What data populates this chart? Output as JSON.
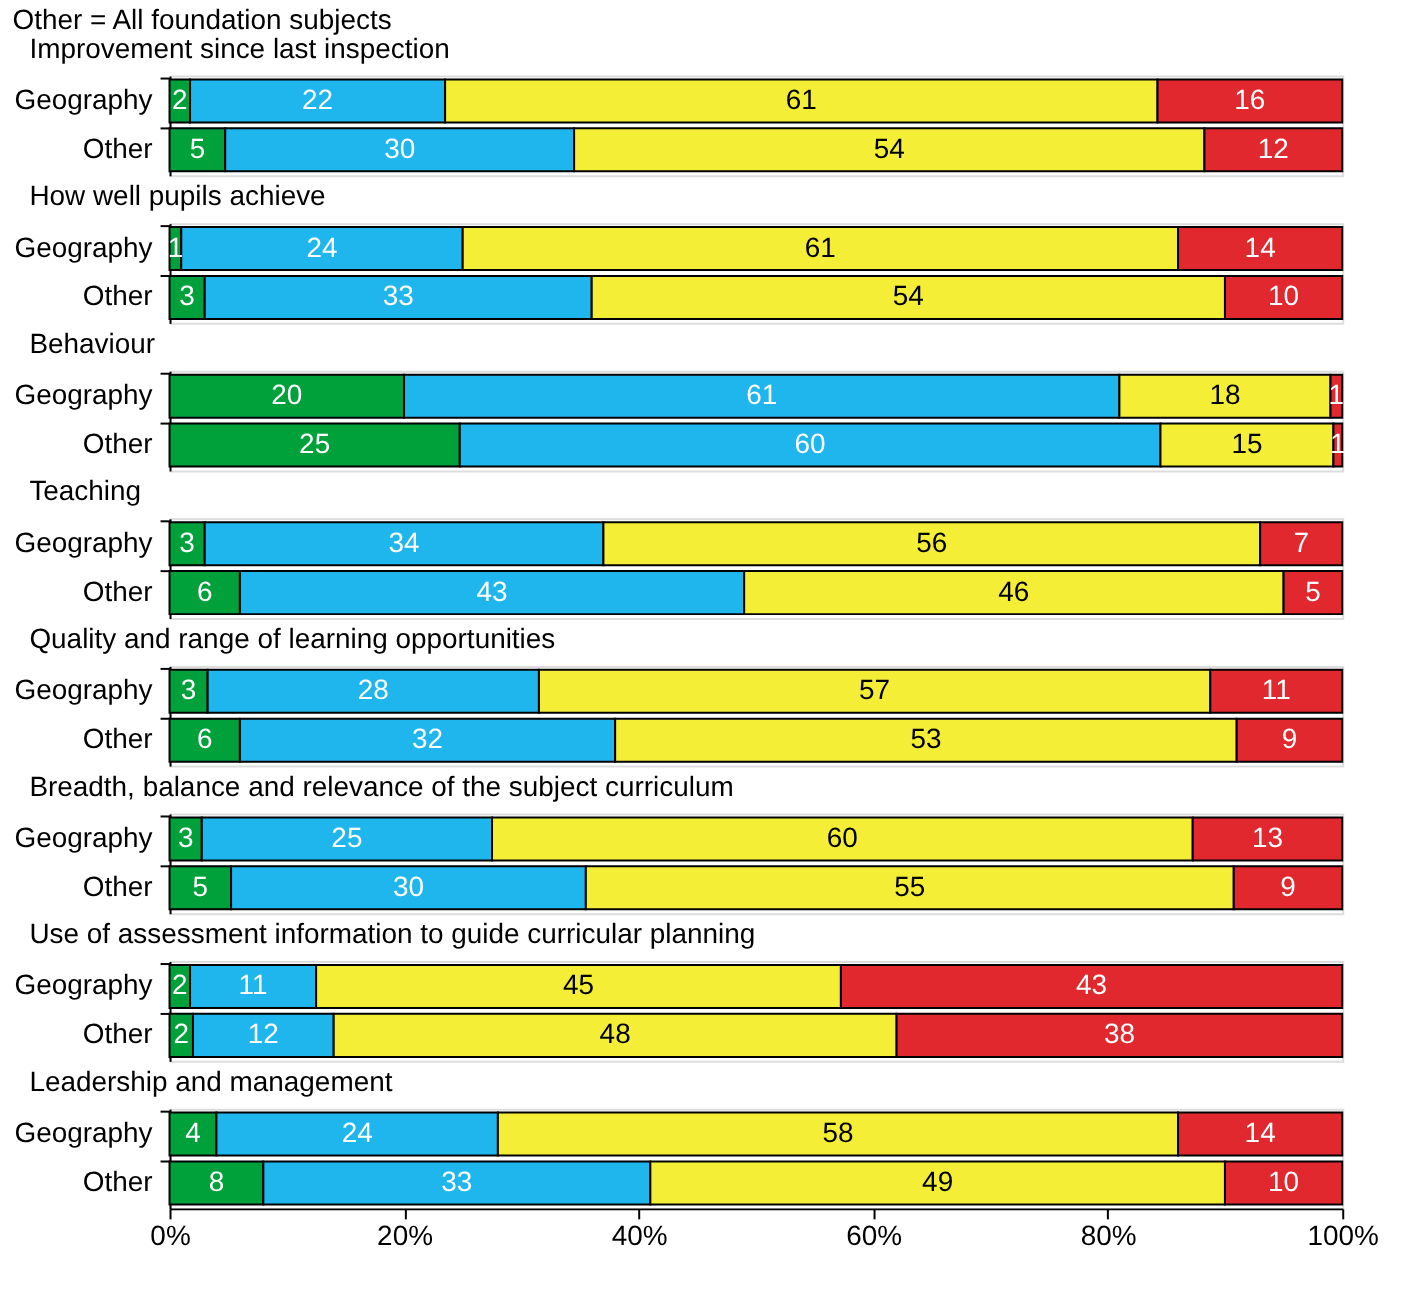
{
  "chart_data": [
    {
      "type": "bar",
      "orientation": "horizontal",
      "stacked": true,
      "tick_labels": "y",
      "title": "Improvement since last inspection",
      "annotations": [
        "Other = All foundation subjects"
      ],
      "categories": [
        "Geography",
        "Other"
      ],
      "xlim": [
        0,
        100
      ],
      "series": [
        {
          "color": "#00a03a",
          "values": [
            1.75,
            4.75
          ],
          "value_labels": [
            "2",
            "5"
          ]
        },
        {
          "color": "#1fb6ee",
          "values": [
            21.75,
            29.75
          ],
          "value_labels": [
            "22",
            "30"
          ]
        },
        {
          "color": "#f4ee36",
          "values": [
            60.75,
            53.75
          ],
          "value_labels": [
            "61",
            "54"
          ]
        },
        {
          "color": "#e0282e",
          "values": [
            15.75,
            11.75
          ],
          "value_labels": [
            "16",
            "12"
          ]
        }
      ]
    },
    {
      "type": "bar",
      "orientation": "horizontal",
      "stacked": true,
      "data_labels": true,
      "tick_labels": "y",
      "title": "How well pupils achieve",
      "categories": [
        "Geography",
        "Other"
      ],
      "xlim": [
        0,
        100
      ],
      "series": [
        {
          "color": "#00a03a",
          "values": [
            1,
            3
          ]
        },
        {
          "color": "#1fb6ee",
          "values": [
            24,
            33
          ]
        },
        {
          "color": "#f4ee36",
          "values": [
            61,
            54
          ]
        },
        {
          "color": "#e0282e",
          "values": [
            14,
            10
          ]
        }
      ]
    },
    {
      "type": "bar",
      "orientation": "horizontal",
      "stacked": true,
      "tick_labels": "y",
      "title": "Behaviour",
      "categories": [
        "Geography",
        "Other"
      ],
      "xlim": [
        0,
        100
      ],
      "series": [
        {
          "color": "#00a03a",
          "values": [
            20,
            24.75
          ],
          "value_labels": [
            "20",
            "25"
          ]
        },
        {
          "color": "#1fb6ee",
          "values": [
            61,
            59.75
          ],
          "value_labels": [
            "61",
            "60"
          ]
        },
        {
          "color": "#f4ee36",
          "values": [
            18,
            14.75
          ],
          "value_labels": [
            "18",
            "15"
          ]
        },
        {
          "color": "#e0282e",
          "values": [
            1,
            0.75
          ],
          "value_labels": [
            "1",
            "1"
          ]
        }
      ]
    },
    {
      "type": "bar",
      "orientation": "horizontal",
      "stacked": true,
      "data_labels": true,
      "tick_labels": "y",
      "title": "Teaching",
      "categories": [
        "Geography",
        "Other"
      ],
      "xlim": [
        0,
        100
      ],
      "series": [
        {
          "color": "#00a03a",
          "values": [
            3,
            6
          ]
        },
        {
          "color": "#1fb6ee",
          "values": [
            34,
            43
          ]
        },
        {
          "color": "#f4ee36",
          "values": [
            56,
            46
          ]
        },
        {
          "color": "#e0282e",
          "values": [
            7,
            5
          ]
        }
      ]
    },
    {
      "type": "bar",
      "orientation": "horizontal",
      "stacked": true,
      "tick_labels": "y",
      "title": "Quality and range of learning opportunities",
      "categories": [
        "Geography",
        "Other"
      ],
      "xlim": [
        0,
        100
      ],
      "series": [
        {
          "color": "#00a03a",
          "values": [
            3.25,
            6
          ],
          "value_labels": [
            "3",
            "6"
          ]
        },
        {
          "color": "#1fb6ee",
          "values": [
            28.25,
            32
          ],
          "value_labels": [
            "28",
            "32"
          ]
        },
        {
          "color": "#f4ee36",
          "values": [
            57.25,
            53
          ],
          "value_labels": [
            "57",
            "53"
          ]
        },
        {
          "color": "#e0282e",
          "values": [
            11.25,
            9
          ],
          "value_labels": [
            "11",
            "9"
          ]
        }
      ]
    },
    {
      "type": "bar",
      "orientation": "horizontal",
      "stacked": true,
      "tick_labels": "y",
      "title": "Breadth, balance and relevance of the subject curriculum",
      "categories": [
        "Geography",
        "Other"
      ],
      "xlim": [
        0,
        100
      ],
      "series": [
        {
          "color": "#00a03a",
          "values": [
            2.75,
            5.25
          ],
          "value_labels": [
            "3",
            "5"
          ]
        },
        {
          "color": "#1fb6ee",
          "values": [
            24.75,
            30.25
          ],
          "value_labels": [
            "25",
            "30"
          ]
        },
        {
          "color": "#f4ee36",
          "values": [
            59.75,
            55.25
          ],
          "value_labels": [
            "60",
            "55"
          ]
        },
        {
          "color": "#e0282e",
          "values": [
            12.75,
            9.25
          ],
          "value_labels": [
            "13",
            "9"
          ]
        }
      ]
    },
    {
      "type": "bar",
      "orientation": "horizontal",
      "stacked": true,
      "tick_labels": "y",
      "title": "Use of assessment information to guide curricular planning",
      "categories": [
        "Geography",
        "Other"
      ],
      "xlim": [
        0,
        100
      ],
      "series": [
        {
          "color": "#00a03a",
          "values": [
            1.75,
            2
          ],
          "value_labels": [
            "2",
            "2"
          ]
        },
        {
          "color": "#1fb6ee",
          "values": [
            10.75,
            12
          ],
          "value_labels": [
            "11",
            "12"
          ]
        },
        {
          "color": "#f4ee36",
          "values": [
            44.75,
            48
          ],
          "value_labels": [
            "45",
            "48"
          ]
        },
        {
          "color": "#e0282e",
          "values": [
            42.75,
            38
          ],
          "value_labels": [
            "43",
            "38"
          ]
        }
      ]
    },
    {
      "type": "bar",
      "orientation": "horizontal",
      "stacked": true,
      "data_labels": true,
      "title": "Leadership and management",
      "categories": [
        "Geography",
        "Other"
      ],
      "xlim": [
        0,
        100
      ],
      "xticks": [
        {
          "value": 0,
          "label": "0%"
        },
        {
          "value": 20,
          "label": "20%"
        },
        {
          "value": 40,
          "label": "40%"
        },
        {
          "value": 60,
          "label": "60%"
        },
        {
          "value": 80,
          "label": "80%"
        },
        {
          "value": 100,
          "label": "100%"
        }
      ],
      "series": [
        {
          "color": "#00a03a",
          "values": [
            4,
            8
          ]
        },
        {
          "color": "#1fb6ee",
          "values": [
            24,
            33
          ]
        },
        {
          "color": "#f4ee36",
          "values": [
            58,
            49
          ]
        },
        {
          "color": "#e0282e",
          "values": [
            14,
            10
          ]
        }
      ]
    }
  ]
}
